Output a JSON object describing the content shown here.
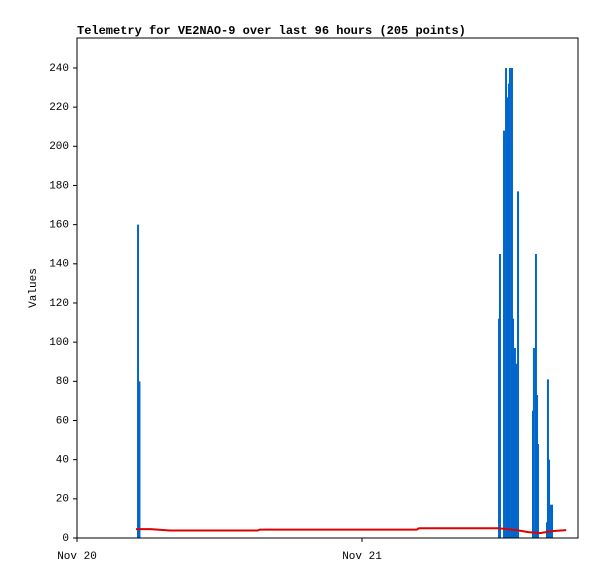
{
  "chart_data": {
    "type": "line",
    "title": "Telemetry for VE2NAO-9 over last 96 hours (205 points)",
    "y_label": "Values",
    "xlim": [
      0,
      42.19
    ],
    "xticks": [
      {
        "value": 0,
        "label": "Nov 20"
      },
      {
        "value": 24,
        "label": "Nov 21"
      }
    ],
    "ylim": [
      0,
      255.3
    ],
    "yticks": [
      0,
      20,
      40,
      60,
      80,
      100,
      120,
      140,
      160,
      180,
      200,
      220,
      240
    ],
    "series": [
      {
        "style": "impulse",
        "color": "#0066cc",
        "x": [
          5.14,
          5.26,
          35.54,
          35.62,
          35.96,
          36.13,
          36.29,
          36.38,
          36.46,
          36.63,
          36.72,
          36.88,
          36.97,
          37.14,
          38.4,
          38.48,
          38.65,
          38.74,
          38.82,
          39.58,
          39.66,
          39.75,
          39.83,
          40.0
        ],
        "values": [
          160,
          80,
          112,
          145,
          208,
          240,
          225,
          232,
          240,
          240,
          112,
          97,
          89,
          177,
          65,
          97,
          145,
          73,
          48,
          8,
          81,
          40,
          17,
          17
        ]
      },
      {
        "style": "line",
        "color": "#dd0000",
        "x": [
          4.97,
          6.2,
          7.8,
          15.2,
          15.4,
          28.6,
          28.8,
          35.5,
          37.0,
          38.0,
          39.0,
          40.0,
          41.2
        ],
        "values": [
          4.5,
          4.5,
          3.8,
          3.8,
          4.3,
          4.3,
          5,
          5,
          4,
          3,
          2.5,
          3.5,
          4
        ]
      }
    ]
  }
}
